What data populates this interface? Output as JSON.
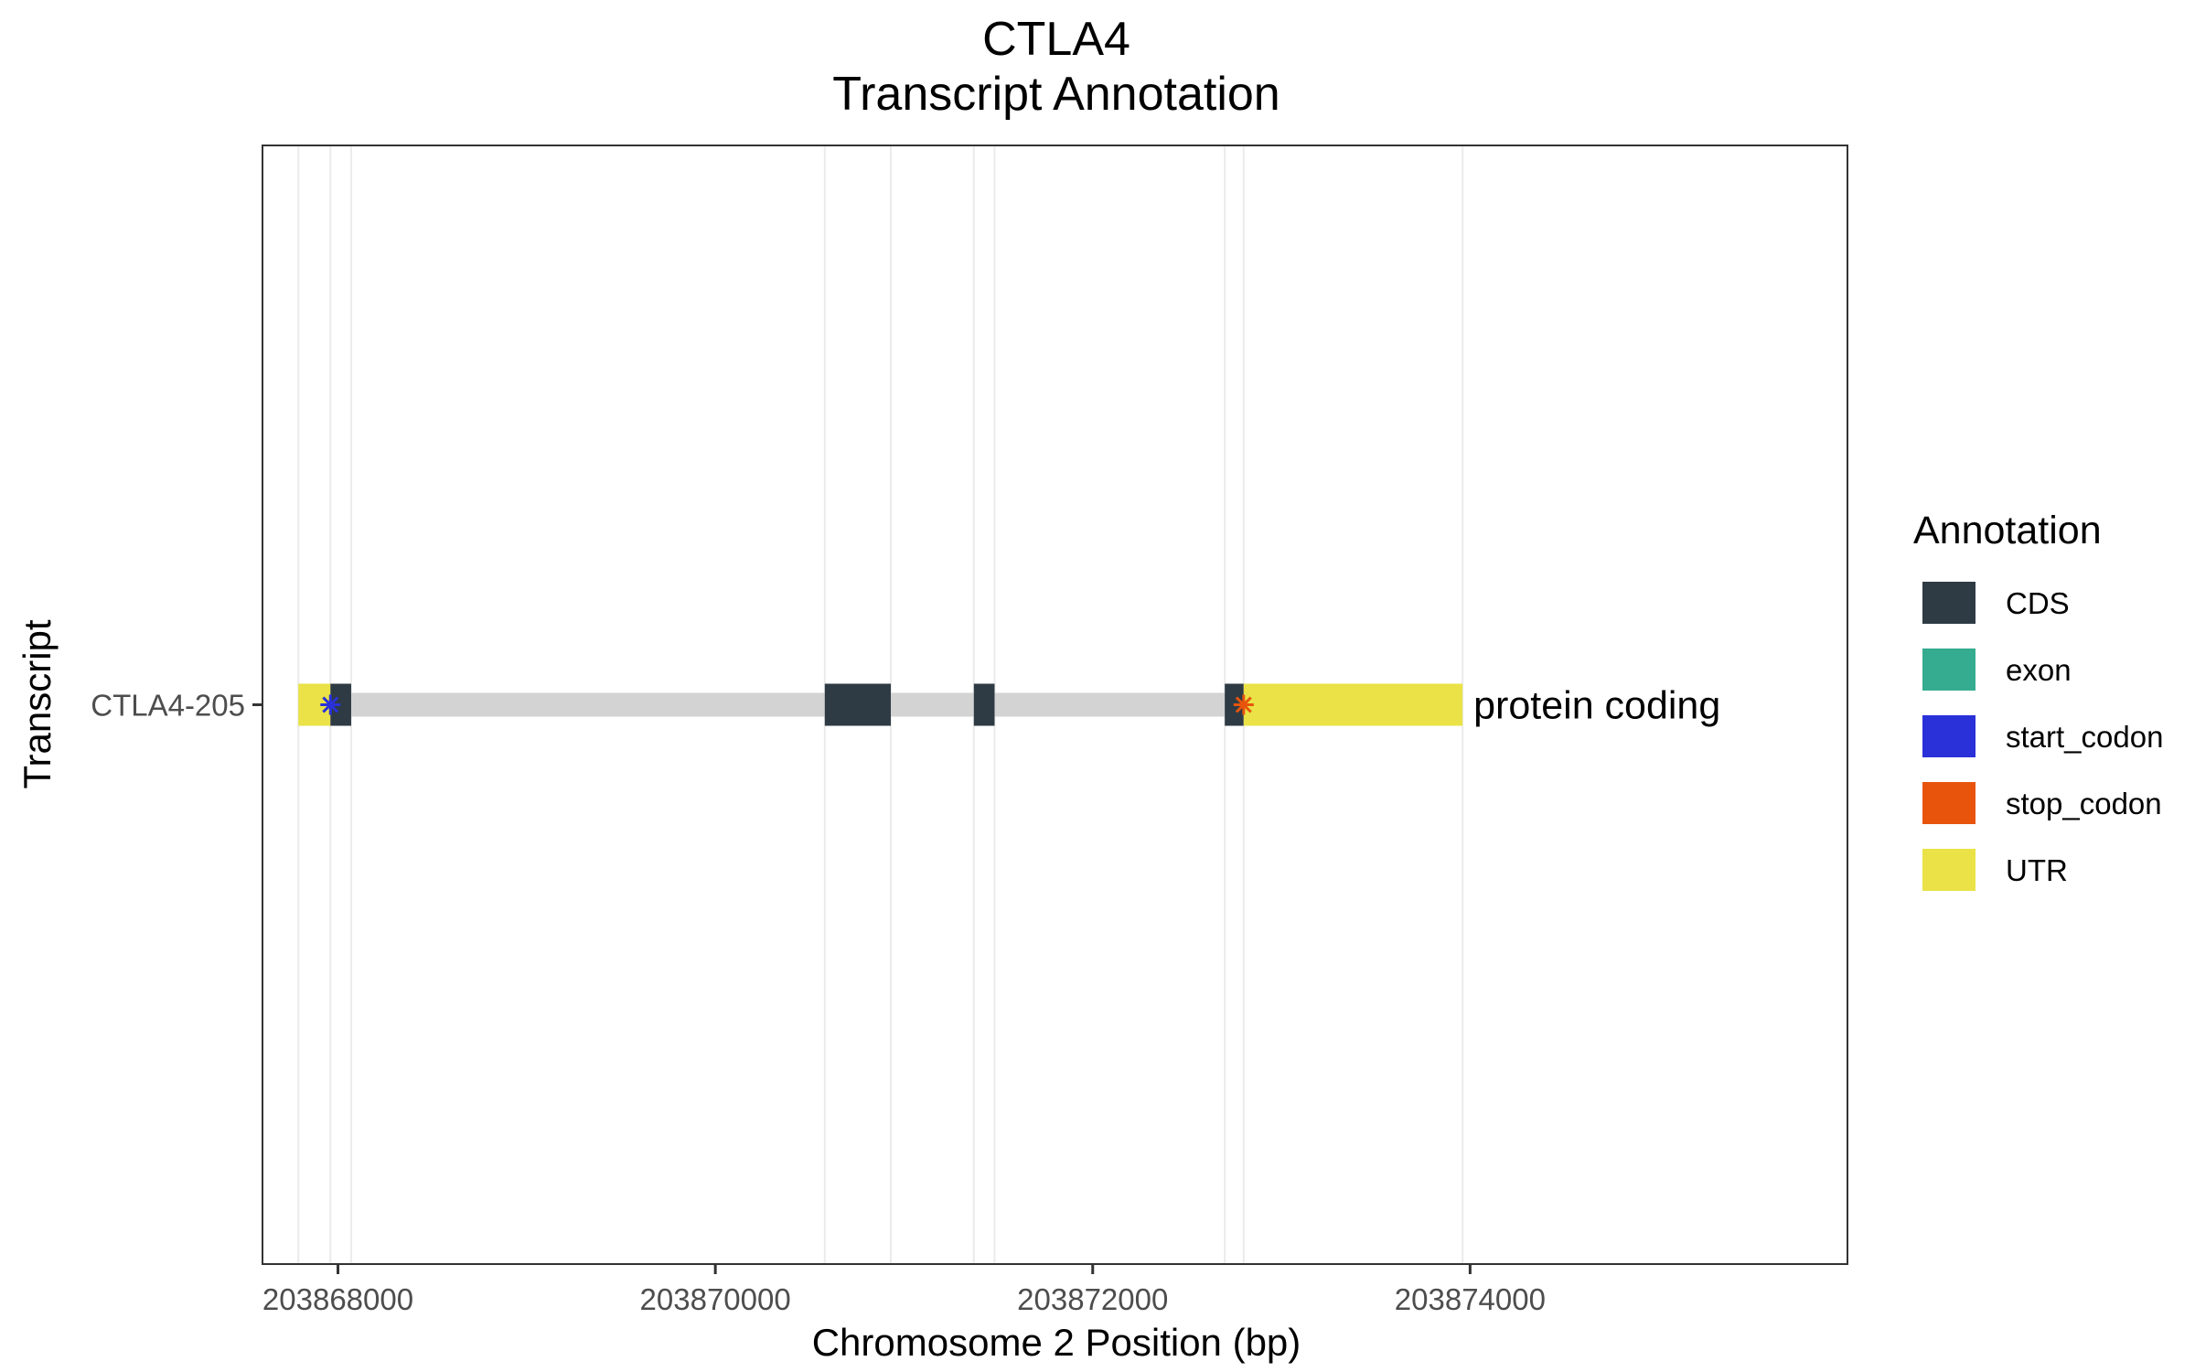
{
  "chart_data": {
    "type": "gene-track",
    "title": "CTLA4",
    "subtitle": "Transcript Annotation",
    "xlabel": "Chromosome 2 Position (bp)",
    "ylabel": "Transcript",
    "xlim": [
      203867600,
      203876000
    ],
    "x_ticks": [
      203868000,
      203870000,
      203872000,
      203874000
    ],
    "x_tick_labels": [
      "203868000",
      "203870000",
      "203872000",
      "203874000"
    ],
    "grid": true,
    "legend_position": "right",
    "legend": {
      "title": "Annotation",
      "items": [
        {
          "label": "CDS",
          "color": "#2e3b44"
        },
        {
          "label": "exon",
          "color": "#35ab8f"
        },
        {
          "label": "start_codon",
          "color": "#2a31d8"
        },
        {
          "label": "stop_codon",
          "color": "#e8540c"
        },
        {
          "label": "UTR",
          "color": "#eae247"
        }
      ]
    },
    "transcripts": [
      {
        "name": "CTLA4-205",
        "biotype_label": "protein coding",
        "start": 203867790,
        "end": 203873960,
        "intron_color": "#d3d3d3",
        "features": [
          {
            "type": "UTR",
            "start": 203867790,
            "end": 203867960
          },
          {
            "type": "CDS",
            "start": 203867960,
            "end": 203868070
          },
          {
            "type": "CDS",
            "start": 203870580,
            "end": 203870930
          },
          {
            "type": "CDS",
            "start": 203871370,
            "end": 203871480
          },
          {
            "type": "CDS",
            "start": 203872700,
            "end": 203872800
          },
          {
            "type": "UTR",
            "start": 203872800,
            "end": 203873960
          }
        ],
        "markers": [
          {
            "type": "start_codon",
            "position": 203867960
          },
          {
            "type": "stop_codon",
            "position": 203872800
          }
        ]
      }
    ]
  }
}
